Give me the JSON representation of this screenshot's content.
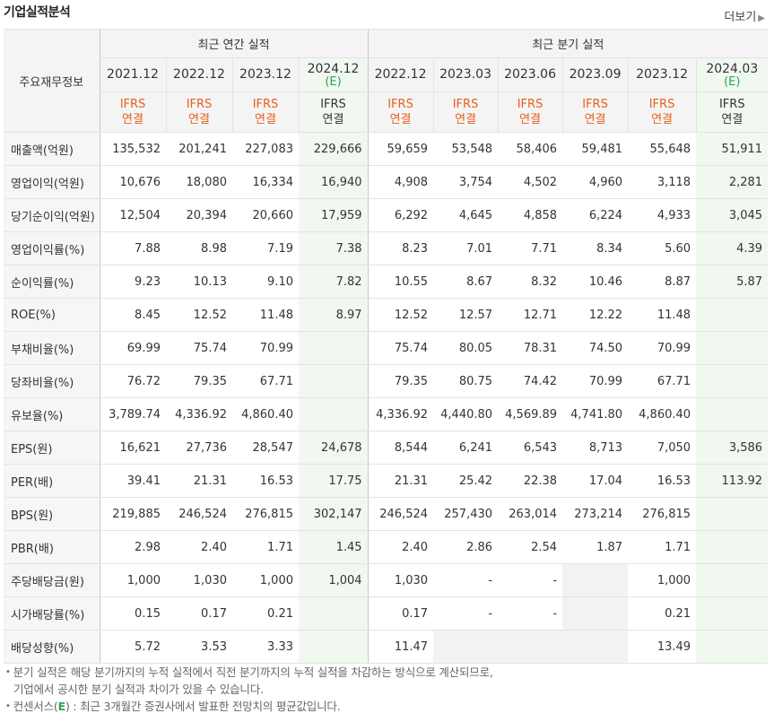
{
  "header": {
    "title": "기업실적분석",
    "more_label": "더보기"
  },
  "table": {
    "corner_label": "주요재무정보",
    "group_annual": "최근 연간 실적",
    "group_quarter": "최근 분기 실적",
    "periods": [
      {
        "year": "2021.12",
        "est": ""
      },
      {
        "year": "2022.12",
        "est": ""
      },
      {
        "year": "2023.12",
        "est": ""
      },
      {
        "year": "2024.12",
        "est": "(E)"
      },
      {
        "year": "2022.12",
        "est": ""
      },
      {
        "year": "2023.03",
        "est": ""
      },
      {
        "year": "2023.06",
        "est": ""
      },
      {
        "year": "2023.09",
        "est": ""
      },
      {
        "year": "2023.12",
        "est": ""
      },
      {
        "year": "2024.03",
        "est": "(E)"
      }
    ],
    "ifrs_label": "IFRS",
    "consol_label": "연결",
    "rows": [
      {
        "label": "매출액(억원)",
        "values": [
          "135,532",
          "201,241",
          "227,083",
          "229,666",
          "59,659",
          "53,548",
          "58,406",
          "59,481",
          "55,648",
          "51,911"
        ]
      },
      {
        "label": "영업이익(억원)",
        "values": [
          "10,676",
          "18,080",
          "16,334",
          "16,940",
          "4,908",
          "3,754",
          "4,502",
          "4,960",
          "3,118",
          "2,281"
        ]
      },
      {
        "label": "당기순이익(억원)",
        "values": [
          "12,504",
          "20,394",
          "20,660",
          "17,959",
          "6,292",
          "4,645",
          "4,858",
          "6,224",
          "4,933",
          "3,045"
        ]
      },
      {
        "label": "영업이익률(%)",
        "values": [
          "7.88",
          "8.98",
          "7.19",
          "7.38",
          "8.23",
          "7.01",
          "7.71",
          "8.34",
          "5.60",
          "4.39"
        ]
      },
      {
        "label": "순이익률(%)",
        "values": [
          "9.23",
          "10.13",
          "9.10",
          "7.82",
          "10.55",
          "8.67",
          "8.32",
          "10.46",
          "8.87",
          "5.87"
        ]
      },
      {
        "label": "ROE(%)",
        "values": [
          "8.45",
          "12.52",
          "11.48",
          "8.97",
          "12.52",
          "12.57",
          "12.71",
          "12.22",
          "11.48",
          ""
        ]
      },
      {
        "label": "부채비율(%)",
        "values": [
          "69.99",
          "75.74",
          "70.99",
          "",
          "75.74",
          "80.05",
          "78.31",
          "74.50",
          "70.99",
          ""
        ]
      },
      {
        "label": "당좌비율(%)",
        "values": [
          "76.72",
          "79.35",
          "67.71",
          "",
          "79.35",
          "80.75",
          "74.42",
          "70.99",
          "67.71",
          ""
        ]
      },
      {
        "label": "유보율(%)",
        "values": [
          "3,789.74",
          "4,336.92",
          "4,860.40",
          "",
          "4,336.92",
          "4,440.80",
          "4,569.89",
          "4,741.80",
          "4,860.40",
          ""
        ]
      },
      {
        "label": "EPS(원)",
        "values": [
          "16,621",
          "27,736",
          "28,547",
          "24,678",
          "8,544",
          "6,241",
          "6,543",
          "8,713",
          "7,050",
          "3,586"
        ]
      },
      {
        "label": "PER(배)",
        "values": [
          "39.41",
          "21.31",
          "16.53",
          "17.75",
          "21.31",
          "25.42",
          "22.38",
          "17.04",
          "16.53",
          "113.92"
        ]
      },
      {
        "label": "BPS(원)",
        "values": [
          "219,885",
          "246,524",
          "276,815",
          "302,147",
          "246,524",
          "257,430",
          "263,014",
          "273,214",
          "276,815",
          ""
        ]
      },
      {
        "label": "PBR(배)",
        "values": [
          "2.98",
          "2.40",
          "1.71",
          "1.45",
          "2.40",
          "2.86",
          "2.54",
          "1.87",
          "1.71",
          ""
        ]
      },
      {
        "label": "주당배당금(원)",
        "values": [
          "1,000",
          "1,030",
          "1,000",
          "1,004",
          "1,030",
          "-",
          "-",
          "",
          "1,000",
          ""
        ]
      },
      {
        "label": "시가배당률(%)",
        "values": [
          "0.15",
          "0.17",
          "0.21",
          "",
          "0.17",
          "-",
          "-",
          "",
          "0.21",
          ""
        ]
      },
      {
        "label": "배당성향(%)",
        "values": [
          "5.72",
          "3.53",
          "3.33",
          "",
          "11.47",
          "",
          "",
          "",
          "13.49",
          ""
        ]
      }
    ]
  },
  "notes": {
    "line1": "분기 실적은 해당 분기까지의 누적 실적에서 직전 분기까지의 누적 실적을 차감하는 방식으로 계산되므로,",
    "line2": "기업에서 공시한 분기 실적과 차이가 있을 수 있습니다.",
    "line3_prefix": "컨센서스(",
    "line3_e": "E",
    "line3_suffix": ") : 최근 3개월간 증권사에서 발표한 전망치의 평균값입니다."
  }
}
